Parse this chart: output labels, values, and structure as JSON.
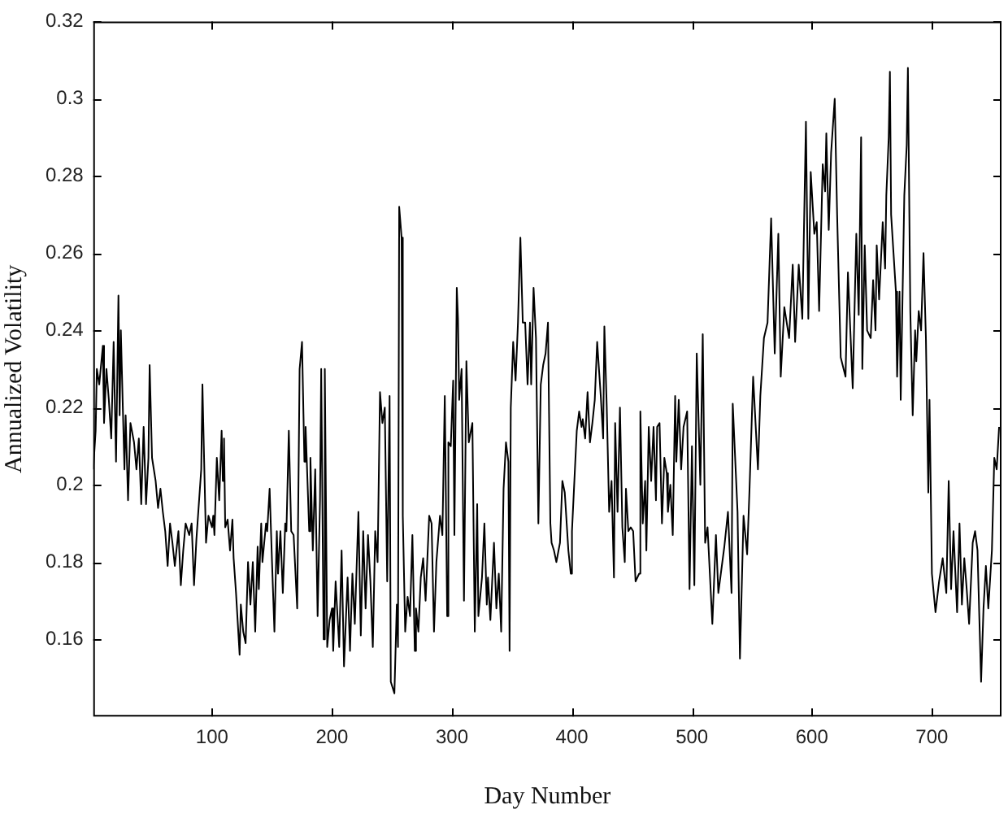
{
  "chart_data": {
    "type": "line",
    "xlabel": "Day Number",
    "ylabel": "Annualized Volatility",
    "xlim": [
      1,
      758
    ],
    "ylim": [
      0.14,
      0.32
    ],
    "xticks": [
      100,
      200,
      300,
      400,
      500,
      600,
      700
    ],
    "yticks": [
      0.16,
      0.18,
      0.2,
      0.22,
      0.24,
      0.26,
      0.28,
      0.3,
      0.32
    ],
    "marker": "none",
    "line_style": "solid",
    "series": [
      {
        "color": "#000000",
        "x": [
          1,
          3,
          4,
          6,
          9,
          10,
          12,
          14,
          16,
          18,
          20,
          22,
          23,
          24,
          27,
          28,
          30,
          32,
          35,
          37,
          39,
          41,
          43,
          45,
          47,
          48,
          50,
          53,
          55,
          57,
          59,
          61,
          63,
          65,
          67,
          69,
          72,
          74,
          76,
          78,
          81,
          83,
          85,
          87,
          91,
          92,
          93,
          95,
          97,
          100,
          101,
          102,
          104,
          106,
          108,
          109,
          110,
          111,
          113,
          115,
          117,
          118,
          120,
          123,
          124,
          126,
          128,
          130,
          132,
          134,
          136,
          138,
          139,
          141,
          142,
          145,
          146,
          148,
          150,
          152,
          154,
          155,
          157,
          159,
          161,
          162,
          164,
          166,
          168,
          171,
          173,
          175,
          177,
          178,
          181,
          182,
          184,
          186,
          188,
          190,
          191,
          193,
          194,
          196,
          198,
          200,
          201,
          203,
          206,
          208,
          210,
          213,
          215,
          217,
          219,
          222,
          224,
          226,
          228,
          230,
          232,
          234,
          236,
          238,
          240,
          242,
          244,
          246,
          248,
          249,
          252,
          254,
          255,
          256,
          258,
          259,
          261,
          263,
          265,
          267,
          269,
          270,
          272,
          274,
          276,
          278,
          281,
          283,
          285,
          287,
          290,
          292,
          294,
          296,
          297,
          299,
          301,
          302,
          304,
          305,
          306,
          308,
          310,
          312,
          314,
          317,
          319,
          321,
          322,
          325,
          327,
          329,
          330,
          332,
          335,
          337,
          339,
          341,
          343,
          345,
          347,
          348,
          349,
          351,
          353,
          355,
          357,
          359,
          361,
          363,
          365,
          366,
          368,
          370,
          372,
          374,
          376,
          378,
          380,
          382,
          383,
          385,
          387,
          390,
          392,
          394,
          397,
          399,
          400,
          402,
          404,
          406,
          408,
          409,
          411,
          413,
          415,
          417,
          419,
          421,
          424,
          426,
          427,
          429,
          431,
          433,
          435,
          436,
          438,
          440,
          442,
          444,
          445,
          447,
          449,
          451,
          453,
          456,
          457,
          459,
          461,
          462,
          464,
          466,
          468,
          470,
          471,
          473,
          475,
          477,
          479,
          480,
          482,
          484,
          486,
          487,
          489,
          491,
          493,
          496,
          498,
          500,
          502,
          504,
          507,
          509,
          511,
          513,
          517,
          520,
          522,
          527,
          530,
          533,
          534,
          538,
          540,
          543,
          546,
          548,
          551,
          555,
          557,
          560,
          563,
          566,
          569,
          572,
          574,
          577,
          581,
          584,
          586,
          589,
          592,
          595,
          597,
          599,
          602,
          604,
          606,
          609,
          611,
          612,
          614,
          616,
          619,
          621,
          624,
          628,
          630,
          634,
          636,
          637,
          639,
          641,
          642,
          644,
          646,
          649,
          651,
          653,
          654,
          656,
          659,
          661,
          662,
          664,
          665,
          666,
          668,
          670,
          671,
          673,
          674,
          677,
          679,
          680,
          682,
          684,
          686,
          687,
          689,
          691,
          693,
          695,
          697,
          698,
          700,
          703,
          706,
          709,
          712,
          714,
          716,
          718,
          721,
          723,
          725,
          727,
          729,
          731,
          734,
          736,
          738,
          741,
          743,
          745,
          747,
          750,
          752,
          754,
          756
        ],
        "values": [
          0.204,
          0.214,
          0.23,
          0.226,
          0.236,
          0.216,
          0.23,
          0.222,
          0.212,
          0.237,
          0.206,
          0.249,
          0.218,
          0.24,
          0.204,
          0.218,
          0.196,
          0.216,
          0.211,
          0.204,
          0.212,
          0.195,
          0.215,
          0.195,
          0.207,
          0.231,
          0.207,
          0.201,
          0.194,
          0.199,
          0.193,
          0.188,
          0.179,
          0.19,
          0.185,
          0.179,
          0.188,
          0.174,
          0.183,
          0.19,
          0.187,
          0.19,
          0.174,
          0.186,
          0.204,
          0.226,
          0.212,
          0.185,
          0.192,
          0.189,
          0.192,
          0.187,
          0.207,
          0.196,
          0.214,
          0.201,
          0.212,
          0.189,
          0.191,
          0.183,
          0.191,
          0.181,
          0.172,
          0.156,
          0.169,
          0.162,
          0.159,
          0.18,
          0.169,
          0.18,
          0.162,
          0.184,
          0.173,
          0.19,
          0.18,
          0.19,
          0.188,
          0.199,
          0.18,
          0.162,
          0.188,
          0.177,
          0.188,
          0.172,
          0.19,
          0.188,
          0.214,
          0.188,
          0.187,
          0.168,
          0.23,
          0.237,
          0.206,
          0.215,
          0.188,
          0.207,
          0.183,
          0.204,
          0.166,
          0.196,
          0.23,
          0.16,
          0.23,
          0.158,
          0.165,
          0.168,
          0.157,
          0.175,
          0.158,
          0.183,
          0.153,
          0.176,
          0.157,
          0.177,
          0.164,
          0.193,
          0.161,
          0.188,
          0.168,
          0.187,
          0.175,
          0.158,
          0.188,
          0.18,
          0.224,
          0.216,
          0.22,
          0.175,
          0.223,
          0.149,
          0.146,
          0.169,
          0.158,
          0.272,
          0.264,
          0.192,
          0.162,
          0.171,
          0.166,
          0.187,
          0.157,
          0.168,
          0.162,
          0.176,
          0.181,
          0.17,
          0.192,
          0.19,
          0.162,
          0.18,
          0.192,
          0.187,
          0.223,
          0.166,
          0.211,
          0.21,
          0.227,
          0.187,
          0.251,
          0.243,
          0.222,
          0.23,
          0.17,
          0.232,
          0.211,
          0.216,
          0.162,
          0.195,
          0.166,
          0.176,
          0.19,
          0.169,
          0.176,
          0.165,
          0.185,
          0.168,
          0.177,
          0.162,
          0.199,
          0.211,
          0.206,
          0.157,
          0.22,
          0.237,
          0.227,
          0.242,
          0.264,
          0.242,
          0.242,
          0.226,
          0.242,
          0.226,
          0.251,
          0.238,
          0.19,
          0.226,
          0.231,
          0.234,
          0.242,
          0.19,
          0.185,
          0.183,
          0.18,
          0.185,
          0.201,
          0.198,
          0.183,
          0.177,
          0.188,
          0.201,
          0.214,
          0.219,
          0.215,
          0.217,
          0.212,
          0.224,
          0.211,
          0.216,
          0.222,
          0.237,
          0.223,
          0.212,
          0.241,
          0.22,
          0.193,
          0.201,
          0.176,
          0.216,
          0.193,
          0.22,
          0.189,
          0.18,
          0.199,
          0.188,
          0.189,
          0.188,
          0.175,
          0.177,
          0.219,
          0.19,
          0.201,
          0.183,
          0.215,
          0.201,
          0.215,
          0.196,
          0.215,
          0.216,
          0.19,
          0.207,
          0.203,
          0.193,
          0.2,
          0.187,
          0.223,
          0.206,
          0.222,
          0.204,
          0.215,
          0.219,
          0.173,
          0.21,
          0.174,
          0.234,
          0.2,
          0.239,
          0.185,
          0.189,
          0.164,
          0.187,
          0.172,
          0.184,
          0.193,
          0.172,
          0.221,
          0.193,
          0.155,
          0.192,
          0.182,
          0.199,
          0.228,
          0.204,
          0.223,
          0.238,
          0.242,
          0.269,
          0.234,
          0.265,
          0.228,
          0.246,
          0.238,
          0.257,
          0.237,
          0.257,
          0.243,
          0.294,
          0.243,
          0.281,
          0.265,
          0.268,
          0.245,
          0.283,
          0.276,
          0.291,
          0.266,
          0.286,
          0.3,
          0.27,
          0.233,
          0.228,
          0.255,
          0.225,
          0.252,
          0.265,
          0.244,
          0.29,
          0.23,
          0.262,
          0.24,
          0.238,
          0.253,
          0.24,
          0.262,
          0.248,
          0.268,
          0.256,
          0.275,
          0.29,
          0.307,
          0.27,
          0.26,
          0.25,
          0.228,
          0.25,
          0.222,
          0.275,
          0.288,
          0.308,
          0.245,
          0.218,
          0.24,
          0.232,
          0.245,
          0.24,
          0.26,
          0.238,
          0.198,
          0.222,
          0.177,
          0.167,
          0.175,
          0.181,
          0.172,
          0.201,
          0.173,
          0.188,
          0.167,
          0.19,
          0.169,
          0.181,
          0.173,
          0.164,
          0.185,
          0.188,
          0.183,
          0.149,
          0.168,
          0.179,
          0.168,
          0.183,
          0.207,
          0.204,
          0.215
        ]
      }
    ]
  }
}
